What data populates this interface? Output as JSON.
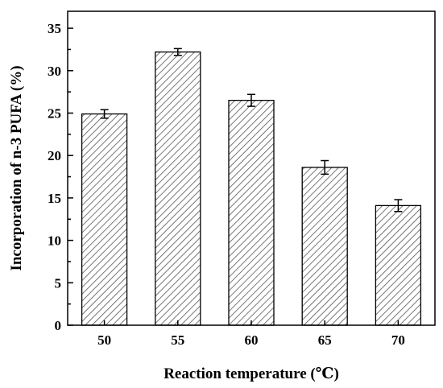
{
  "chart_data": {
    "type": "bar",
    "categories": [
      "50",
      "55",
      "60",
      "65",
      "70"
    ],
    "values": [
      24.9,
      32.2,
      26.5,
      18.6,
      14.1
    ],
    "errors": [
      0.5,
      0.4,
      0.7,
      0.8,
      0.7
    ],
    "title": "",
    "xlabel": "Reaction temperature (℃)",
    "ylabel": "Incorporation of n-3 PUFA (%)",
    "ylim": [
      0,
      37
    ],
    "yticks": [
      0,
      5,
      10,
      15,
      20,
      25,
      30,
      35
    ],
    "grid": false,
    "bar_fill": "hatched",
    "colors": {
      "bar_stroke": "#000000",
      "hatch": "#555555",
      "background": "#ffffff"
    }
  }
}
